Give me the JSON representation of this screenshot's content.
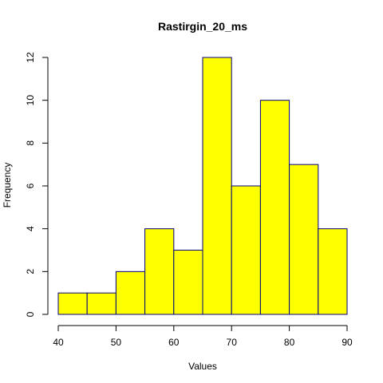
{
  "chart_data": {
    "type": "histogram",
    "title": "Rastirgin_20_ms",
    "xlabel": "Values",
    "ylabel": "Frequency",
    "bins": [
      {
        "start": 40,
        "end": 45,
        "count": 1
      },
      {
        "start": 45,
        "end": 50,
        "count": 1
      },
      {
        "start": 50,
        "end": 55,
        "count": 2
      },
      {
        "start": 55,
        "end": 60,
        "count": 4
      },
      {
        "start": 60,
        "end": 65,
        "count": 3
      },
      {
        "start": 65,
        "end": 70,
        "count": 12
      },
      {
        "start": 70,
        "end": 75,
        "count": 6
      },
      {
        "start": 75,
        "end": 80,
        "count": 10
      },
      {
        "start": 80,
        "end": 85,
        "count": 7
      },
      {
        "start": 85,
        "end": 90,
        "count": 4
      }
    ],
    "xlim": [
      40,
      90
    ],
    "ylim": [
      0,
      12
    ],
    "x_ticks": [
      40,
      50,
      60,
      70,
      80,
      90
    ],
    "y_ticks": [
      0,
      2,
      4,
      6,
      8,
      10,
      12
    ],
    "bar_fill": "#ffff00",
    "bar_stroke": "#000080",
    "grid": false
  }
}
